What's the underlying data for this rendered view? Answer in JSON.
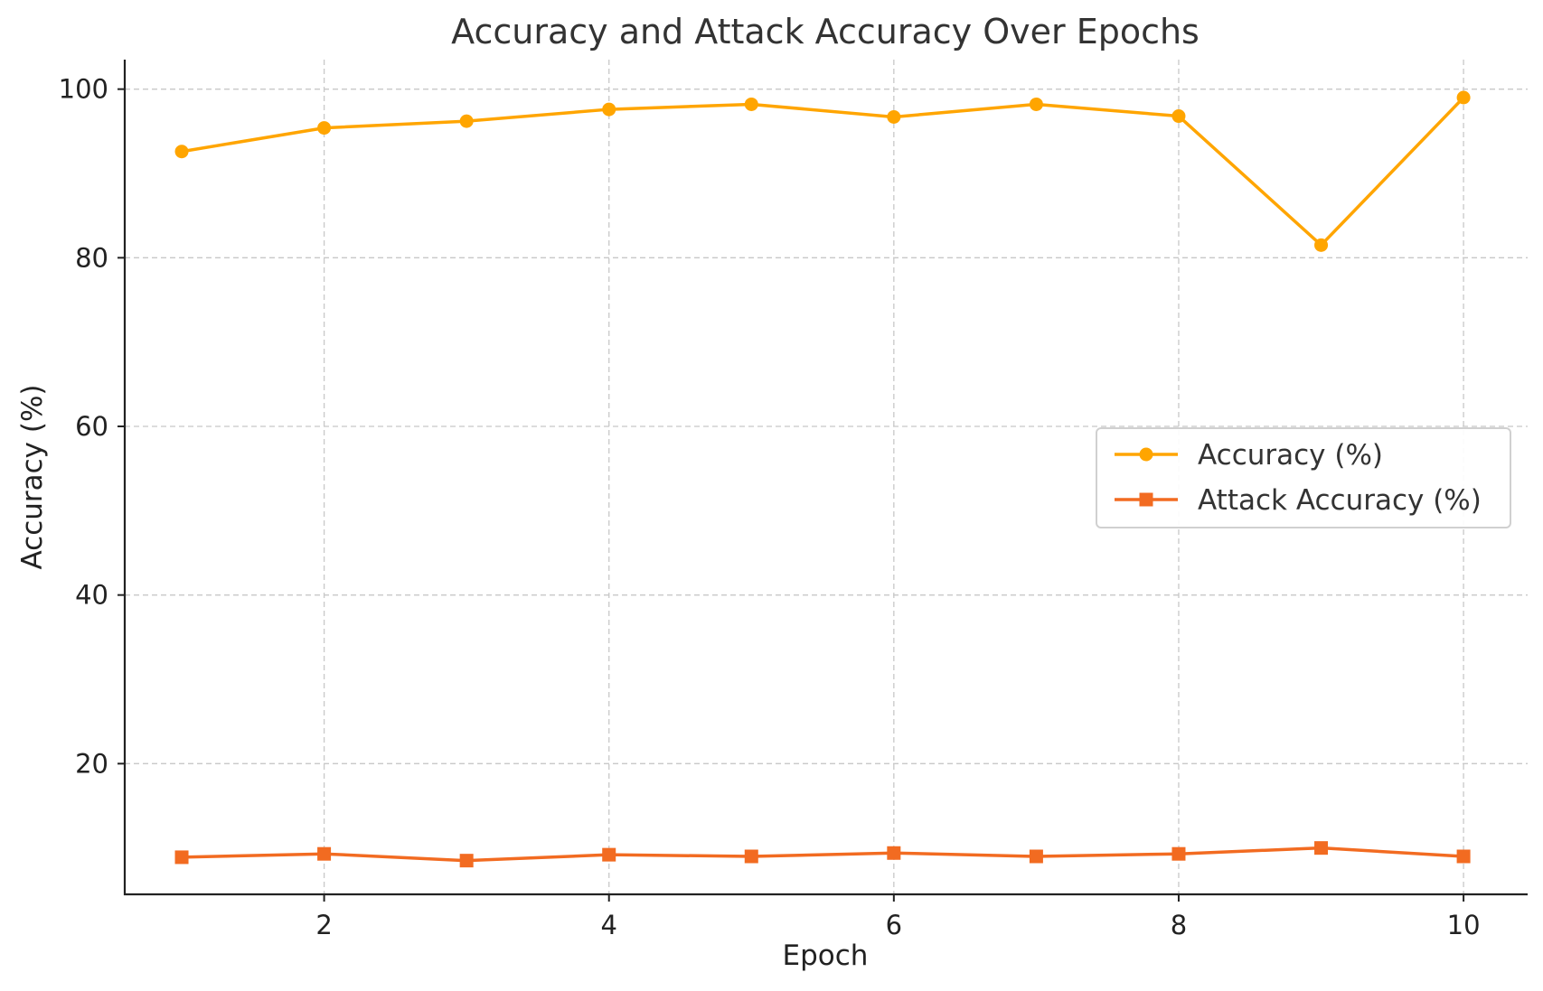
{
  "chart_data": {
    "type": "line",
    "title": "Accuracy and Attack Accuracy Over Epochs",
    "xlabel": "Epoch",
    "ylabel": "Accuracy (%)",
    "x": [
      1,
      2,
      3,
      4,
      5,
      6,
      7,
      8,
      9,
      10
    ],
    "xlim": [
      0.6,
      10.45
    ],
    "ylim": [
      4.5,
      103.5
    ],
    "xticks": [
      2,
      4,
      6,
      8,
      10
    ],
    "yticks": [
      20,
      40,
      60,
      80,
      100
    ],
    "grid": true,
    "legend_position": "center-right",
    "series": [
      {
        "name": "Accuracy (%)",
        "marker": "circle",
        "color": "#FFA500",
        "values": [
          92.6,
          95.4,
          96.2,
          97.6,
          98.2,
          96.7,
          98.2,
          96.8,
          81.5,
          99.0
        ]
      },
      {
        "name": "Attack Accuracy (%)",
        "marker": "square",
        "color": "#F26B21",
        "values": [
          8.9,
          9.3,
          8.5,
          9.2,
          9.0,
          9.4,
          9.0,
          9.3,
          10.0,
          9.0
        ]
      }
    ]
  }
}
